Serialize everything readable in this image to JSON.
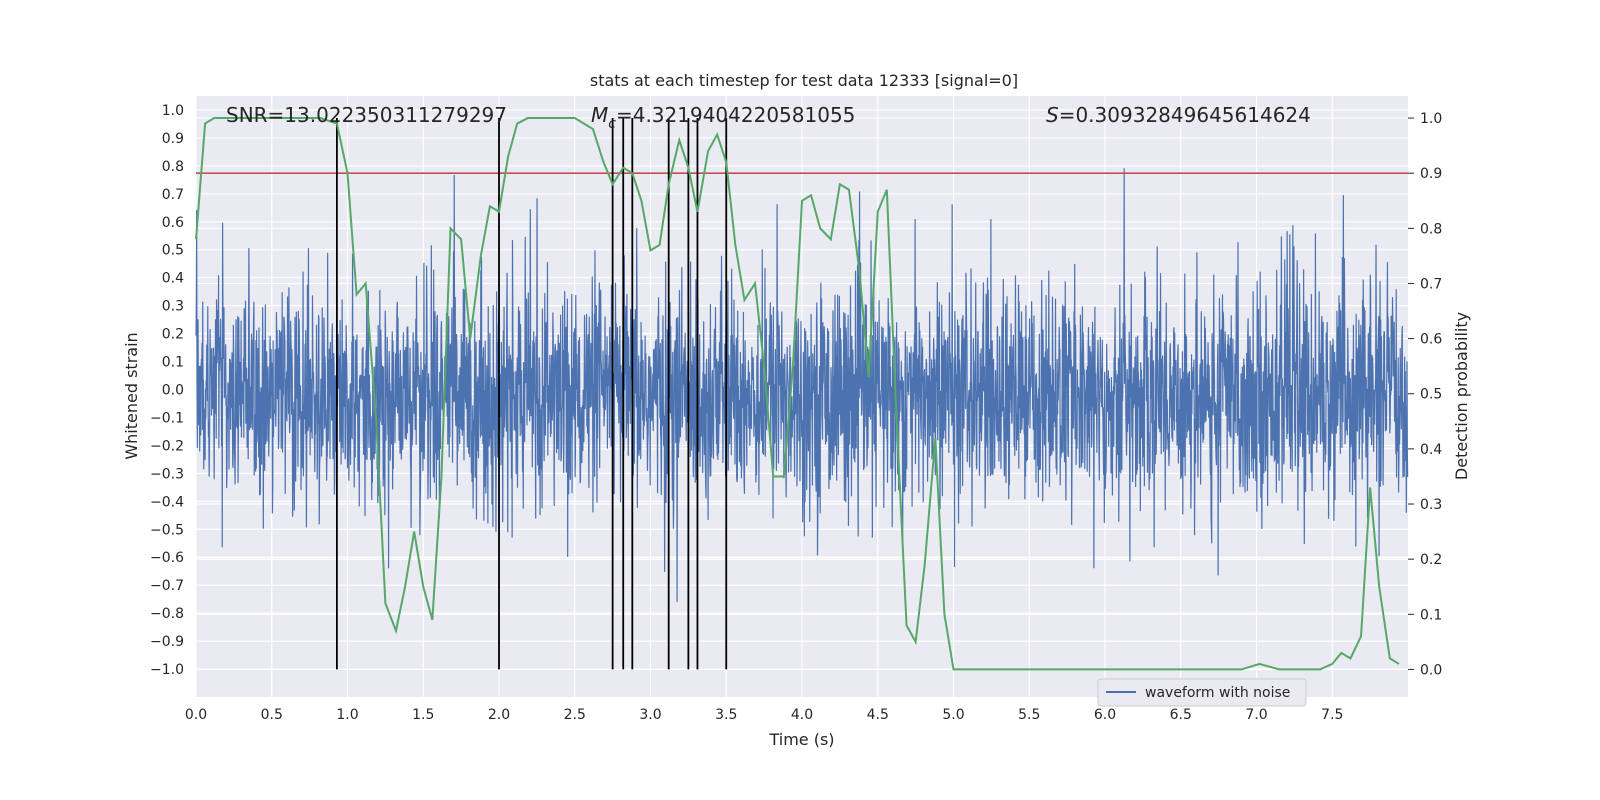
{
  "chart_data": {
    "type": "line",
    "title": "stats at each timestep for test data 12333 [signal=0]",
    "xlabel": "Time (s)",
    "ylabel_left": "Whitened strain",
    "ylabel_right": "Detection probability",
    "xlim": [
      0,
      8
    ],
    "ylim_left": [
      -1.1,
      1.05
    ],
    "ylim_right": [
      -0.05,
      1.04
    ],
    "x_ticks": [
      "0.0",
      "0.5",
      "1.0",
      "1.5",
      "2.0",
      "2.5",
      "3.0",
      "3.5",
      "4.0",
      "4.5",
      "5.0",
      "5.5",
      "6.0",
      "6.5",
      "7.0",
      "7.5"
    ],
    "y_left_ticks": [
      "1.0",
      "0.9",
      "0.8",
      "0.7",
      "0.6",
      "0.5",
      "0.4",
      "0.3",
      "0.2",
      "0.1",
      "0.0",
      "-0.1",
      "-0.2",
      "-0.3",
      "-0.4",
      "-0.5",
      "-0.6",
      "-0.7",
      "-0.8",
      "-0.9",
      "-1.0"
    ],
    "y_right_ticks": [
      "0.0",
      "0.1",
      "0.2",
      "0.3",
      "0.4",
      "0.5",
      "0.6",
      "0.7",
      "0.8",
      "0.9",
      "1.0"
    ],
    "annotations": {
      "snr": "SNR=13.022350311279297",
      "mc_symbol": "M",
      "mc_sub": "c",
      "mc_value": "=4.3219404220581055",
      "s_symbol": "S",
      "s_value": "=0.30932849645614624"
    },
    "legend": {
      "label": "waveform with noise",
      "placement": "lower-right"
    },
    "threshold": 0.9,
    "vlines_x": [
      0.93,
      2.0,
      2.75,
      2.82,
      2.88,
      3.12,
      3.25,
      3.31,
      3.5
    ],
    "series": [
      {
        "name": "waveform with noise",
        "kind": "noise",
        "sigma": 0.19,
        "baseline": -0.02
      },
      {
        "kind": "detection-probability",
        "x": [
          0.0,
          0.06,
          0.12,
          0.3,
          0.5,
          0.7,
          0.82,
          0.93,
          1.0,
          1.06,
          1.12,
          1.19,
          1.25,
          1.32,
          1.38,
          1.44,
          1.5,
          1.56,
          1.62,
          1.68,
          1.75,
          1.81,
          1.88,
          1.94,
          2.0,
          2.06,
          2.12,
          2.19,
          2.25,
          2.5,
          2.62,
          2.69,
          2.75,
          2.82,
          2.88,
          2.94,
          3.0,
          3.06,
          3.12,
          3.19,
          3.25,
          3.31,
          3.38,
          3.44,
          3.5,
          3.56,
          3.62,
          3.69,
          3.75,
          3.81,
          3.88,
          3.94,
          4.0,
          4.06,
          4.12,
          4.19,
          4.25,
          4.31,
          4.38,
          4.44,
          4.5,
          4.56,
          4.62,
          4.69,
          4.75,
          4.81,
          4.88,
          4.94,
          5.0,
          5.2,
          5.5,
          5.7,
          5.8,
          6.0,
          6.15,
          6.3,
          6.5,
          6.9,
          6.96,
          7.02,
          7.15,
          7.3,
          7.42,
          7.5,
          7.56,
          7.62,
          7.69,
          7.75,
          7.81,
          7.88,
          7.94
        ],
        "y": [
          0.78,
          0.99,
          1.0,
          1.0,
          1.0,
          1.0,
          1.0,
          0.99,
          0.9,
          0.68,
          0.7,
          0.45,
          0.12,
          0.07,
          0.15,
          0.25,
          0.15,
          0.09,
          0.35,
          0.8,
          0.78,
          0.6,
          0.75,
          0.84,
          0.83,
          0.93,
          0.99,
          1.0,
          1.0,
          1.0,
          0.98,
          0.92,
          0.88,
          0.91,
          0.9,
          0.85,
          0.76,
          0.77,
          0.88,
          0.96,
          0.91,
          0.83,
          0.94,
          0.97,
          0.92,
          0.77,
          0.67,
          0.7,
          0.55,
          0.35,
          0.35,
          0.55,
          0.85,
          0.86,
          0.8,
          0.78,
          0.88,
          0.87,
          0.72,
          0.53,
          0.83,
          0.87,
          0.48,
          0.08,
          0.05,
          0.19,
          0.42,
          0.1,
          0.0,
          0.0,
          0.0,
          0.0,
          0.0,
          0.0,
          0.0,
          0.0,
          0.0,
          0.0,
          0.005,
          0.01,
          0.0,
          0.0,
          0.0,
          0.01,
          0.03,
          0.02,
          0.06,
          0.33,
          0.15,
          0.02,
          0.01
        ]
      }
    ]
  }
}
